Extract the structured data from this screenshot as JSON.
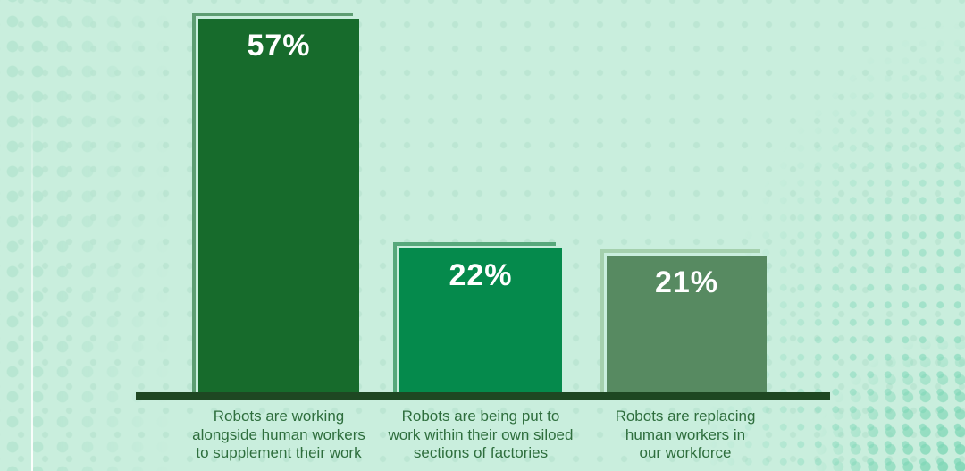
{
  "chart_data": {
    "type": "bar",
    "categories": [
      "Robots are working alongside human workers to supplement their work",
      "Robots are being put to work within their own siloed sections of factories",
      "Robots are replacing human workers in our workforce"
    ],
    "values": [
      57,
      22,
      21
    ],
    "value_labels": [
      "57%",
      "22%",
      "21%"
    ],
    "title": "",
    "xlabel": "",
    "ylabel": "",
    "ylim": [
      0,
      60
    ],
    "grid": false,
    "legend": "none",
    "background_color": "#c9eedd",
    "axis_line_color": "#1e4722",
    "bar_colors": [
      "#176b2c",
      "#058a4c",
      "#578a61"
    ],
    "bar_outline_colors": [
      "#5d9d72",
      "#57a87b",
      "#a4d0ad"
    ],
    "value_label_color": "#ffffff",
    "category_label_color": "#2e6e3d",
    "dot_pattern_colors": {
      "left": "#b7e5d1",
      "right": "#8fdcc0"
    }
  },
  "bars": [
    {
      "pct": "57%",
      "label_lines": [
        "Robots are working",
        "alongside human workers",
        "to supplement their work"
      ]
    },
    {
      "pct": "22%",
      "label_lines": [
        "Robots are being put to",
        "work within their own siloed",
        "sections of factories"
      ]
    },
    {
      "pct": "21%",
      "label_lines": [
        "Robots are replacing",
        "human workers in",
        "our workforce"
      ]
    }
  ]
}
